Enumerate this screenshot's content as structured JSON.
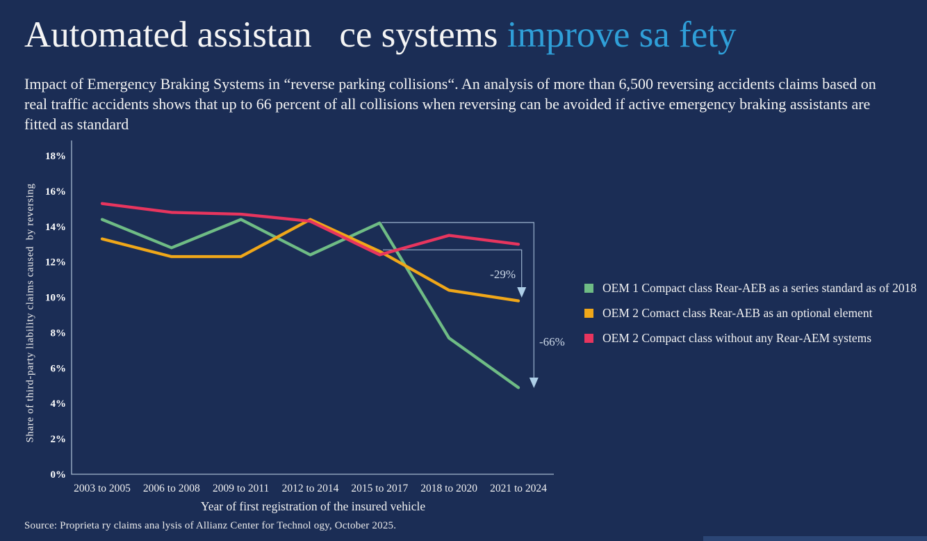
{
  "title": {
    "white_part": "Automated assistan   ce systems ",
    "accent_part": "improve sa fety",
    "accent_color": "#2f9fd8"
  },
  "subtitle": "Impact of Emergency Braking Systems in “reverse parking collisions“. An analysis of more than 6,500 reversing accidents claims based on real traffic accidents shows that up to 66 percent of all collisions when reversing can be avoided if active emergency braking assistants are fitted as standard",
  "chart_data": {
    "type": "line",
    "categories": [
      "2003 to 2005",
      "2006 to 2008",
      "2009 to 2011",
      "2012 to 2014",
      "2015 to 2017",
      "2018 to 2020",
      "2021 to 2024"
    ],
    "series": [
      {
        "name": "OEM 1 Compact class Rear-AEB as a series standard as of 2018",
        "color": "#6fbc85",
        "values": [
          14.4,
          12.8,
          14.4,
          12.4,
          14.2,
          7.7,
          4.9
        ]
      },
      {
        "name": "OEM 2 Comact class Rear-AEB as an optional element",
        "color": "#f0a719",
        "values": [
          13.3,
          12.3,
          12.3,
          14.4,
          12.6,
          10.4,
          9.8
        ]
      },
      {
        "name": "OEM 2 Compact class without any Rear-AEM systems",
        "color": "#e8355e",
        "values": [
          15.3,
          14.8,
          14.7,
          14.3,
          12.4,
          13.5,
          13.0
        ]
      }
    ],
    "title": "",
    "xlabel": "Year of first registration of the insured vehicle",
    "ylabel": "Share of third-party liability claims caused  by reversing",
    "ylim": [
      0,
      18
    ],
    "ytick_step": 2,
    "ytick_suffix": "%",
    "grid": false,
    "legend_position": "right",
    "annotations": [
      {
        "label": "-29%"
      },
      {
        "label": "-66%"
      }
    ],
    "axis_color": "#a5b8cf",
    "annotation_line_color": "#9cb4cf",
    "annotation_arrow_color": "#aecfe8",
    "annotation_text_color": "#cdd9e8"
  },
  "source": "Source: Proprieta ry claims ana lysis of Allianz Center  for Technol ogy, October 2025.",
  "colors": {
    "background": "#1b2d55",
    "text": "#f5f5f5",
    "bottom_bar": "#2b4575"
  }
}
